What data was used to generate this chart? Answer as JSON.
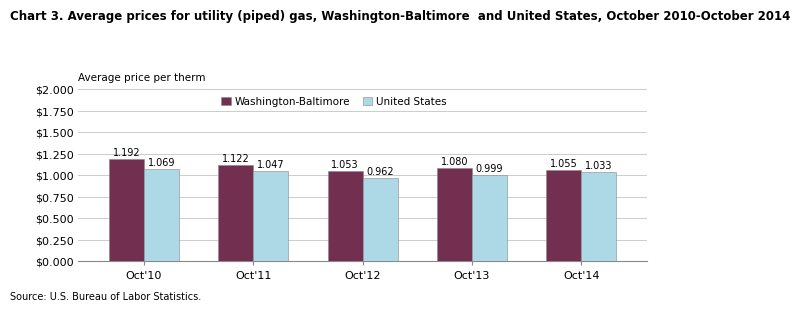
{
  "title": "Chart 3. Average prices for utility (piped) gas, Washington-Baltimore  and United States, October 2010-October 2014",
  "ylabel": "Average price per therm",
  "source": "Source: U.S. Bureau of Labor Statistics.",
  "categories": [
    "Oct'10",
    "Oct'11",
    "Oct'12",
    "Oct'13",
    "Oct'14"
  ],
  "washington_values": [
    1.192,
    1.122,
    1.053,
    1.08,
    1.055
  ],
  "us_values": [
    1.069,
    1.047,
    0.962,
    0.999,
    1.033
  ],
  "washington_color": "#722F4F",
  "us_color": "#ADD8E6",
  "bar_edge_color": "#888888",
  "ylim": [
    0,
    2.0
  ],
  "yticks": [
    0.0,
    0.25,
    0.5,
    0.75,
    1.0,
    1.25,
    1.5,
    1.75,
    2.0
  ],
  "ytick_labels": [
    "$0.000",
    "$0.250",
    "$0.500",
    "$0.750",
    "$1.000",
    "$1.250",
    "$1.500",
    "$1.750",
    "$2.000"
  ],
  "legend_labels": [
    "Washington-Baltimore",
    "United States"
  ],
  "bar_width": 0.32,
  "title_fontsize": 8.5,
  "axis_label_fontsize": 7.5,
  "tick_fontsize": 8,
  "value_fontsize": 7,
  "legend_fontsize": 7.5,
  "source_fontsize": 7,
  "background_color": "#ffffff",
  "grid_color": "#cccccc"
}
